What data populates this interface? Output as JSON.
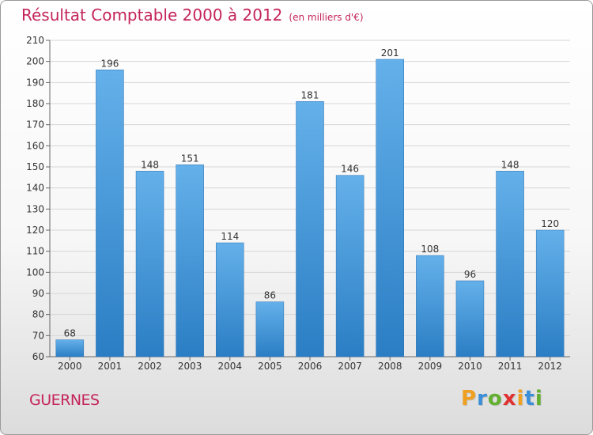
{
  "title": "Résultat Comptable 2000 à 2012",
  "subtitle": "(en milliers d'€)",
  "city": "GUERNES",
  "logo": {
    "letters": [
      "P",
      "r",
      "o",
      "x",
      "i",
      "t",
      "i"
    ],
    "colors": [
      "#f0a020",
      "#3a8fd8",
      "#62b030",
      "#e03030",
      "#f0a020",
      "#3a8fd8",
      "#62b030"
    ]
  },
  "colors": {
    "bar_top": "#64b0ea",
    "bar_bottom": "#2b7ec4",
    "title": "#c4245a"
  },
  "chart_data": {
    "type": "bar",
    "title": "Résultat Comptable 2000 à 2012",
    "xlabel": "",
    "ylabel": "",
    "categories": [
      "2000",
      "2001",
      "2002",
      "2003",
      "2004",
      "2005",
      "2006",
      "2007",
      "2008",
      "2009",
      "2010",
      "2011",
      "2012"
    ],
    "values": [
      68,
      196,
      148,
      151,
      114,
      86,
      181,
      146,
      201,
      108,
      96,
      148,
      120
    ],
    "ylim": [
      60,
      210
    ],
    "yticks": [
      60,
      70,
      80,
      90,
      100,
      110,
      120,
      130,
      140,
      150,
      160,
      170,
      180,
      190,
      200,
      210
    ],
    "grid": true
  }
}
